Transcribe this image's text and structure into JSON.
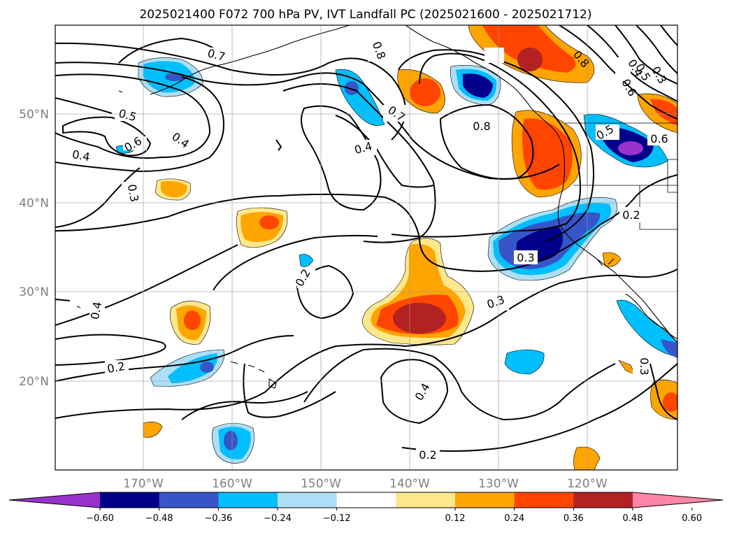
{
  "title": "2025021400 F072 700 hPa PV, IVT Landfall PC (2025021600 - 2025021712)",
  "map": {
    "lon_range": [
      -180,
      -110
    ],
    "lat_range": [
      10,
      60
    ],
    "lon_ticks": [
      "170°W",
      "160°W",
      "150°W",
      "140°W",
      "130°W",
      "120°W"
    ],
    "lat_ticks": [
      "50°N",
      "40°N",
      "30°N",
      "20°N"
    ],
    "grid": true
  },
  "contour_labels": [
    "0.7",
    "0.8",
    "0.8",
    "0.4",
    "0.5",
    "0.6",
    "0.5",
    "0.3",
    "0.4",
    "0.6",
    "0.4",
    "0.7",
    "0.8",
    "0.4",
    "0.5",
    "0.6",
    "0.3",
    "0.4",
    "0.2",
    "0.2",
    "0.3",
    "0.3",
    "0.4",
    "0.2",
    "0.2",
    "0.3"
  ],
  "colorbar": {
    "ticks": [
      "−0.60",
      "−0.48",
      "−0.36",
      "−0.24",
      "−0.12",
      "0.12",
      "0.24",
      "0.36",
      "0.48",
      "0.60"
    ],
    "levels": [
      -0.6,
      -0.48,
      -0.36,
      -0.24,
      -0.12,
      0.12,
      0.24,
      0.36,
      0.48,
      0.6
    ],
    "colors": [
      "#9932CC",
      "#00008B",
      "#3755C8",
      "#00BFFF",
      "#ADDFF7",
      "#FFFFFF",
      "#FFE88C",
      "#FFA500",
      "#FF4500",
      "#B22222",
      "#FF85A8"
    ],
    "extend": "both"
  }
}
